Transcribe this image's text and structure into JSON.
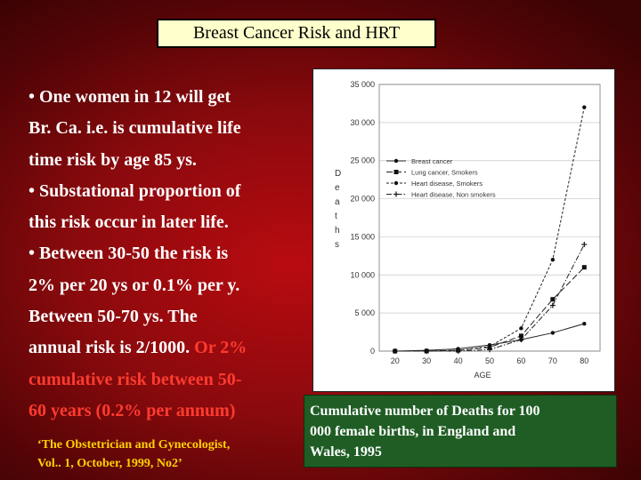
{
  "title": "Breast Cancer Risk and HRT",
  "bullets": [
    {
      "text": "• One women in 12 will get",
      "accent": false
    },
    {
      "text": "Br. Ca. i.e. is cumulative life",
      "accent": false
    },
    {
      "text": "time risk by age 85 ys.",
      "accent": false
    },
    {
      "text": "• Substational proportion of",
      "accent": false
    },
    {
      "text": "this risk occur in later life.",
      "accent": false
    },
    {
      "text": "• Between 30-50 the risk is",
      "accent": false
    },
    {
      "text": "2% per 20 ys or 0.1% per y.",
      "accent": false
    },
    {
      "text": "Between 50-70  ys. The",
      "accent": false
    },
    {
      "text_plain": "annual risk is 2/1000. ",
      "text_accent": "Or 2%",
      "mixed": true
    },
    {
      "text": "cumulative risk between 50-",
      "accent": true
    },
    {
      "text": "60 years (0.2% per annum)",
      "accent": true
    }
  ],
  "citation": {
    "line1": "‘The Obstetrician and Gynecologist,",
    "line2": "Vol.. 1, October, 1999, No2’"
  },
  "caption": {
    "line1": "Cumulative number of  Deaths for 100",
    "line2": "000 female births, in England and",
    "line3": "Wales, 1995"
  },
  "colors": {
    "title_bg": "#ffffcc",
    "accent_text": "#ff3b2f",
    "citation_text": "#ffd200",
    "caption_bg": "#1f5d24"
  },
  "chart_data": {
    "type": "line",
    "title": "",
    "xlabel": "AGE",
    "ylabel": "Deaths",
    "x": [
      20,
      30,
      40,
      50,
      60,
      70,
      80
    ],
    "x_ticks": [
      "20",
      "30",
      "40",
      "50",
      "60",
      "70",
      "80"
    ],
    "xlim": [
      15,
      85
    ],
    "ylim": [
      0,
      35000
    ],
    "y_ticks": [
      "0",
      "5 000",
      "10 000",
      "15 000",
      "20 000",
      "25 000",
      "30 000",
      "35 000"
    ],
    "y_tick_values": [
      0,
      5000,
      10000,
      15000,
      20000,
      25000,
      30000,
      35000
    ],
    "grid": true,
    "legend_position": "top-left",
    "series": [
      {
        "name": "Breast cancer",
        "values": [
          0,
          100,
          300,
          800,
          1500,
          2400,
          3600
        ],
        "marker": "dot",
        "dash": "solid"
      },
      {
        "name": "Lung cancer, Smokers",
        "values": [
          0,
          0,
          100,
          500,
          2000,
          6800,
          11000
        ],
        "marker": "square",
        "dash": "long"
      },
      {
        "name": "Heart disease, Smokers",
        "values": [
          0,
          0,
          100,
          600,
          3000,
          12000,
          32000
        ],
        "marker": "dot",
        "dash": "short"
      },
      {
        "name": "Heart disease, Non smokers",
        "values": [
          0,
          0,
          0,
          200,
          1500,
          6000,
          14000
        ],
        "marker": "plus",
        "dash": "dashdot"
      }
    ]
  }
}
